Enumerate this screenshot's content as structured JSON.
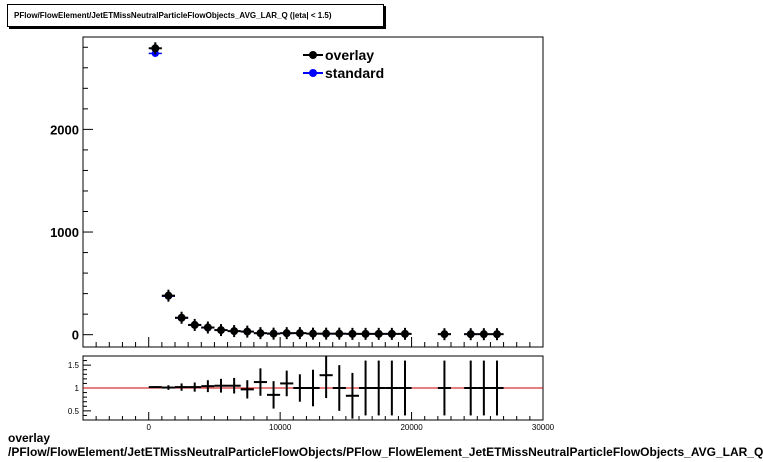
{
  "title": "PFlow/FlowElement/JetETMissNeutralParticleFlowObjects_AVG_LAR_Q (|eta| < 1.5)",
  "bottom_label_line1": "overlay",
  "bottom_label_line2": "/PFlow/FlowElement/JetETMissNeutralParticleFlowObjects/PFlow_FlowElement_JetETMissNeutralParticleFlowObjects_AVG_LAR_Q",
  "colors": {
    "overlay": "#000000",
    "standard": "#0000ff",
    "ratio_line": "#cc0000"
  },
  "chart_data": [
    {
      "type": "scatter",
      "panel": "main",
      "xlim": [
        -5000,
        30000
      ],
      "ylim": [
        -120,
        2900
      ],
      "yticks": [
        0,
        1000,
        2000
      ],
      "xticks": [],
      "legend": {
        "placement": "top-right",
        "entries": [
          "overlay",
          "standard"
        ]
      },
      "bin_width": 1000,
      "series": [
        {
          "name": "overlay",
          "marker": "filled-circle",
          "x": [
            500,
            1500,
            2500,
            3500,
            4500,
            5500,
            6500,
            7500,
            8500,
            9500,
            10500,
            11500,
            12500,
            13500,
            14500,
            15500,
            16500,
            17500,
            18500,
            19500,
            22500,
            24500,
            25500,
            26500
          ],
          "y": [
            2790,
            380,
            165,
            95,
            70,
            45,
            35,
            30,
            15,
            10,
            15,
            15,
            10,
            10,
            10,
            8,
            8,
            8,
            8,
            8,
            5,
            5,
            5,
            5
          ]
        },
        {
          "name": "standard",
          "marker": "filled-circle",
          "x": [
            500,
            1500,
            2500,
            3500,
            4500,
            5500,
            6500,
            7500,
            8500,
            9500,
            10500,
            11500,
            12500,
            13500,
            14500,
            15500,
            16500,
            17500,
            18500,
            19500,
            22500,
            24500,
            25500,
            26500
          ],
          "y": [
            2740,
            375,
            162,
            93,
            67,
            43,
            33,
            30,
            13,
            12,
            13,
            14,
            9,
            8,
            8,
            9,
            8,
            8,
            8,
            8,
            5,
            5,
            5,
            5
          ]
        }
      ]
    },
    {
      "type": "scatter",
      "panel": "ratio",
      "xlim": [
        -5000,
        30000
      ],
      "ylim": [
        0.3,
        1.7
      ],
      "yticks": [
        0.5,
        1,
        1.5
      ],
      "xticks": [
        0,
        10000,
        20000,
        30000
      ],
      "reference_line": 1,
      "bin_width": 1000,
      "series": [
        {
          "name": "ratio",
          "x": [
            500,
            1500,
            2500,
            3500,
            4500,
            5500,
            6500,
            7500,
            8500,
            9500,
            10500,
            11500,
            12500,
            13500,
            14500,
            15500,
            16500,
            17500,
            18500,
            19500,
            22500,
            24500,
            25500,
            26500
          ],
          "y": [
            1.02,
            1.01,
            1.02,
            1.02,
            1.04,
            1.05,
            1.05,
            0.97,
            1.13,
            0.85,
            1.1,
            1.0,
            1.0,
            1.28,
            1.0,
            0.83,
            1.0,
            1.0,
            1.0,
            1.0,
            1.0,
            1.0,
            1.0,
            1.0
          ],
          "err": [
            0.02,
            0.05,
            0.08,
            0.1,
            0.13,
            0.15,
            0.17,
            0.2,
            0.3,
            0.3,
            0.28,
            0.3,
            0.4,
            0.5,
            0.5,
            0.5,
            0.6,
            0.6,
            0.6,
            0.6,
            0.6,
            0.6,
            0.6,
            0.6
          ]
        }
      ]
    }
  ]
}
